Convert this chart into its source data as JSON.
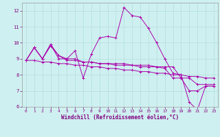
{
  "xlabel": "Windchill (Refroidissement éolien,°C)",
  "background_color": "#cff0f0",
  "grid_color": "#b0dede",
  "line_color": "#aa00aa",
  "xlim": [
    -0.5,
    23.5
  ],
  "ylim": [
    6,
    12.5
  ],
  "yticks": [
    6,
    7,
    8,
    9,
    10,
    11,
    12
  ],
  "xticks": [
    0,
    1,
    2,
    3,
    4,
    5,
    6,
    7,
    8,
    9,
    10,
    11,
    12,
    13,
    14,
    15,
    16,
    17,
    18,
    19,
    20,
    21,
    22,
    23
  ],
  "series": [
    [
      8.9,
      9.7,
      9.0,
      9.8,
      9.2,
      9.0,
      9.5,
      7.8,
      9.3,
      10.3,
      10.4,
      10.3,
      12.2,
      11.7,
      11.6,
      10.9,
      10.0,
      9.0,
      8.1,
      8.0,
      6.3,
      5.8,
      7.3,
      7.3
    ],
    [
      8.9,
      9.7,
      9.0,
      9.9,
      9.0,
      9.0,
      9.0,
      8.8,
      8.8,
      8.7,
      8.7,
      8.7,
      8.7,
      8.6,
      8.6,
      8.6,
      8.5,
      8.5,
      8.5,
      7.8,
      7.8,
      7.4,
      7.4,
      7.4
    ],
    [
      8.9,
      9.7,
      9.0,
      9.9,
      9.2,
      8.9,
      8.9,
      8.8,
      8.8,
      8.7,
      8.7,
      8.6,
      8.6,
      8.6,
      8.5,
      8.5,
      8.5,
      8.4,
      7.8,
      7.8,
      7.0,
      7.0,
      7.3,
      7.3
    ],
    [
      8.9,
      8.9,
      8.8,
      8.8,
      8.7,
      8.7,
      8.6,
      8.6,
      8.5,
      8.5,
      8.4,
      8.4,
      8.3,
      8.3,
      8.2,
      8.2,
      8.1,
      8.1,
      8.0,
      8.0,
      7.9,
      7.9,
      7.8,
      7.8
    ]
  ],
  "tick_color": "#800080",
  "label_fontsize": 4.5,
  "xlabel_fontsize": 5.5
}
